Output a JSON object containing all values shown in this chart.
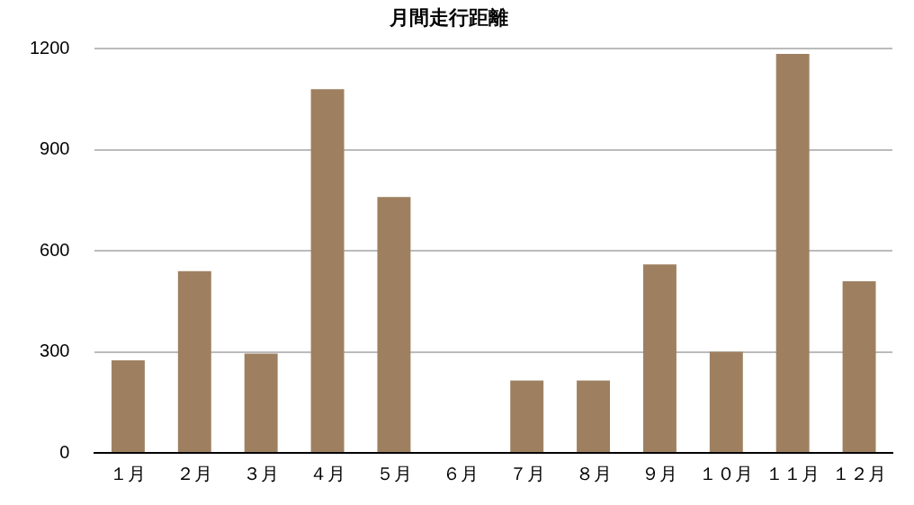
{
  "chart_data": {
    "type": "bar",
    "title": "月間走行距離",
    "categories": [
      "１月",
      "２月",
      "３月",
      "４月",
      "５月",
      "６月",
      "７月",
      "８月",
      "９月",
      "１０月",
      "１１月",
      "１２月"
    ],
    "values": [
      275,
      540,
      295,
      1080,
      760,
      0,
      215,
      215,
      560,
      300,
      1185,
      510
    ],
    "color": "#9e8060",
    "ylim": [
      0,
      1200
    ],
    "yticks": [
      0,
      300,
      600,
      900,
      1200
    ],
    "grid": "y",
    "legend": false
  }
}
